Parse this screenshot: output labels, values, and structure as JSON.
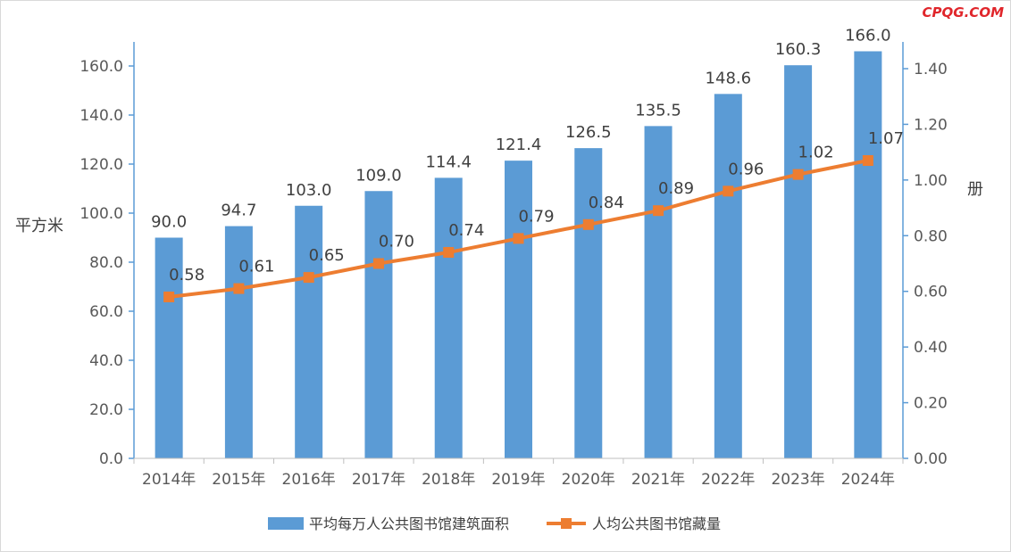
{
  "watermark": "CPQG.COM",
  "chart_data": {
    "type": "bar+line",
    "categories": [
      "2014年",
      "2015年",
      "2016年",
      "2017年",
      "2018年",
      "2019年",
      "2020年",
      "2021年",
      "2022年",
      "2023年",
      "2024年"
    ],
    "series": [
      {
        "name": "平均每万人公共图书馆建筑面积",
        "type": "bar",
        "axis": "left",
        "color": "#5b9bd5",
        "values": [
          90.0,
          94.7,
          103.0,
          109.0,
          114.4,
          121.4,
          126.5,
          135.5,
          148.6,
          160.3,
          166.0
        ],
        "labels": [
          "90.0",
          "94.7",
          "103.0",
          "109.0",
          "114.4",
          "121.4",
          "126.5",
          "135.5",
          "148.6",
          "160.3",
          "166.0"
        ]
      },
      {
        "name": "人均公共图书馆藏量",
        "type": "line",
        "axis": "right",
        "color": "#ed7d31",
        "values": [
          0.58,
          0.61,
          0.65,
          0.7,
          0.74,
          0.79,
          0.84,
          0.89,
          0.96,
          1.02,
          1.07
        ],
        "labels": [
          "0.58",
          "0.61",
          "0.65",
          "0.70",
          "0.74",
          "0.79",
          "0.84",
          "0.89",
          "0.96",
          "1.02",
          "1.07"
        ]
      }
    ],
    "y_left": {
      "label": "平方米",
      "ylim": [
        0,
        160
      ],
      "ticks": [
        "0.0",
        "20.0",
        "40.0",
        "60.0",
        "80.0",
        "100.0",
        "120.0",
        "140.0",
        "160.0"
      ],
      "tick_values": [
        0,
        20,
        40,
        60,
        80,
        100,
        120,
        140,
        160
      ]
    },
    "y_right": {
      "label": "册",
      "ylim": [
        0,
        1.4
      ],
      "ticks": [
        "0.00",
        "0.20",
        "0.40",
        "0.60",
        "0.80",
        "1.00",
        "1.20",
        "1.40"
      ],
      "tick_values": [
        0,
        0.2,
        0.4,
        0.6,
        0.8,
        1.0,
        1.2,
        1.4
      ]
    },
    "grid": false,
    "legend": "bottom"
  }
}
